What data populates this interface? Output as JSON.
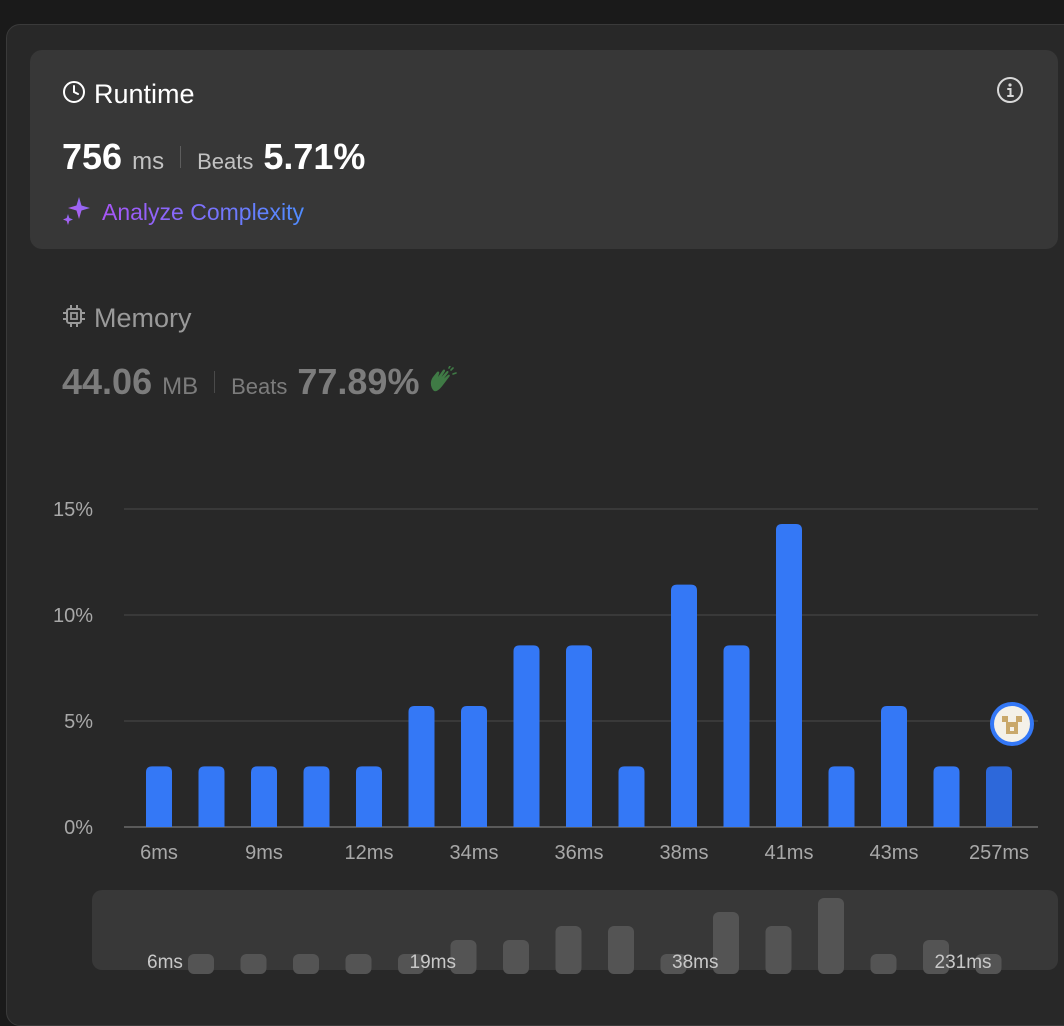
{
  "runtime": {
    "title": "Runtime",
    "value": "756",
    "unit": "ms",
    "beats_label": "Beats",
    "beats_pct": "5.71%",
    "analyze_label": "Analyze Complexity"
  },
  "memory": {
    "title": "Memory",
    "value": "44.06",
    "unit": "MB",
    "beats_label": "Beats",
    "beats_pct": "77.89%"
  },
  "icons": {
    "runtime": "clock-icon",
    "memory": "chip-icon",
    "info": "info-icon",
    "analyze": "sparkle-icon",
    "clap": "clap-icon",
    "avatar": "user-avatar"
  },
  "colors": {
    "bar": "#3478f6",
    "bar_current": "#2d68da",
    "analyze_gradient": [
      "#a855f7",
      "#4f8cff"
    ],
    "clap": "#3f7a45"
  },
  "chart_data": {
    "type": "bar",
    "yticks": [
      "0%",
      "5%",
      "10%",
      "15%"
    ],
    "ylim": [
      0,
      15
    ],
    "values": [
      2.86,
      2.86,
      2.86,
      2.86,
      2.86,
      5.71,
      5.71,
      8.57,
      8.57,
      2.86,
      11.43,
      8.57,
      14.29,
      2.86,
      5.71,
      2.86,
      2.86
    ],
    "xtick_labels": [
      {
        "index": 0,
        "label": "6ms"
      },
      {
        "index": 2,
        "label": "9ms"
      },
      {
        "index": 4,
        "label": "12ms"
      },
      {
        "index": 6,
        "label": "34ms"
      },
      {
        "index": 8,
        "label": "36ms"
      },
      {
        "index": 10,
        "label": "38ms"
      },
      {
        "index": 12,
        "label": "41ms"
      },
      {
        "index": 14,
        "label": "43ms"
      },
      {
        "index": 16,
        "label": "257ms"
      }
    ],
    "current_index": 16,
    "grid": true
  },
  "overview": {
    "labels": [
      {
        "index": 0,
        "label": "6ms"
      },
      {
        "index": 5,
        "label": "19ms"
      },
      {
        "index": 10,
        "label": "38ms"
      },
      {
        "index": 15,
        "label": "231ms"
      }
    ]
  }
}
